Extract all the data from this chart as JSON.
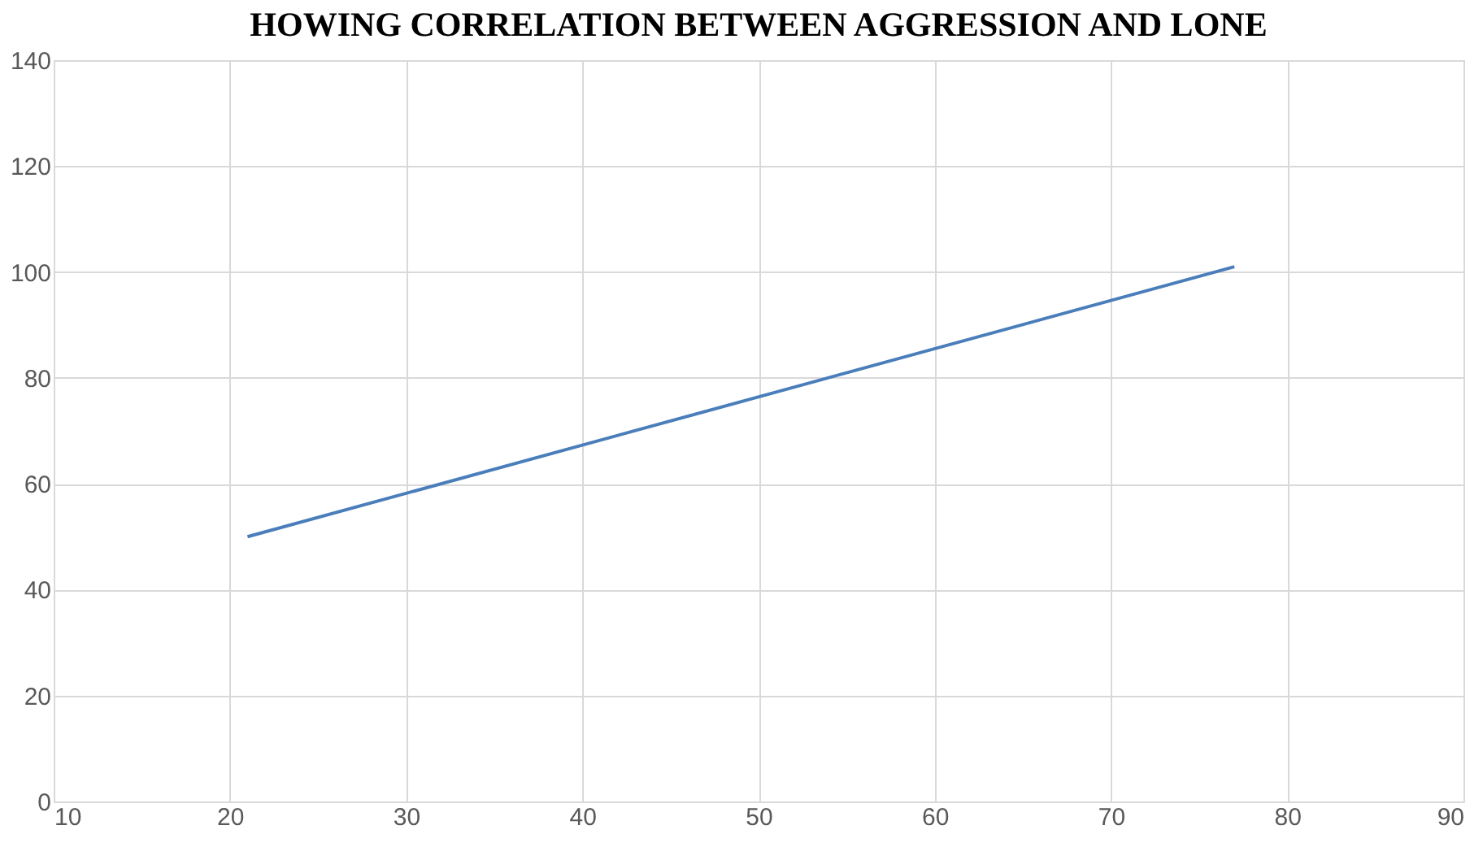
{
  "chart_data": {
    "type": "line",
    "title": "HOWING CORRELATION BETWEEN AGGRESSION AND LONE",
    "series": [
      {
        "x": [
          21,
          77
        ],
        "values": [
          50,
          101
        ],
        "color": "#4a7ebb"
      }
    ],
    "xlim": [
      10,
      90
    ],
    "xticks": [
      10,
      20,
      30,
      40,
      50,
      60,
      70,
      80,
      90
    ],
    "ylim": [
      0,
      140
    ],
    "yticks": [
      0,
      20,
      40,
      60,
      80,
      100,
      120,
      140
    ],
    "grid": true,
    "marker": "none",
    "line_style": "solid"
  }
}
